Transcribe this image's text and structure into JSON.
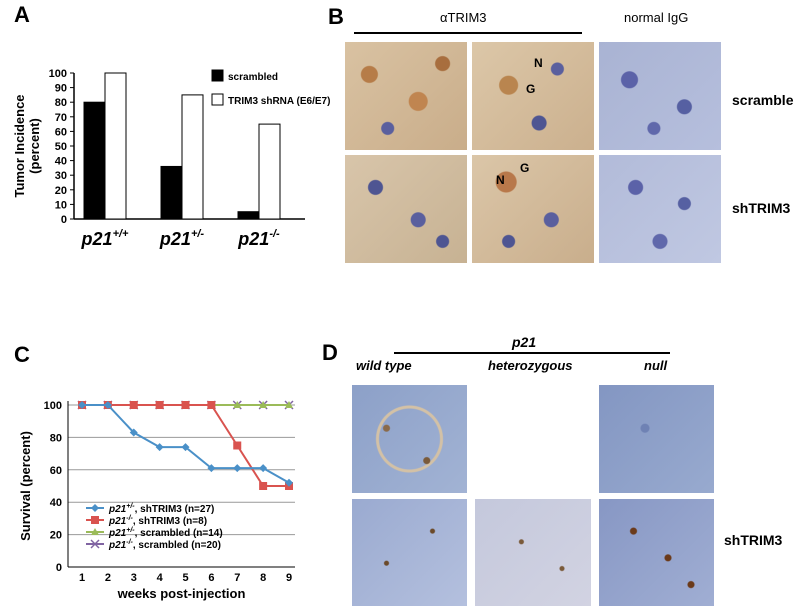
{
  "panels": {
    "a": "A",
    "b": "B",
    "c": "C",
    "d": "D"
  },
  "panel_b": {
    "header_antibody": "αTRIM3",
    "header_control": "normal IgG",
    "row_labels": [
      "scramble",
      "shTRIM3"
    ],
    "markers": {
      "N": "N",
      "G": "G"
    }
  },
  "panel_d": {
    "header": "p21",
    "columns": [
      "wild type",
      "heterozygous",
      "null"
    ],
    "row_label": "shTRIM3"
  },
  "chart_data": [
    {
      "type": "bar",
      "panel": "A",
      "ylabel": "Tumor Incidence (percent)",
      "ylim": [
        0,
        100
      ],
      "yticks": [
        0,
        10,
        20,
        30,
        40,
        50,
        60,
        70,
        80,
        90,
        100
      ],
      "categories": [
        {
          "base": "p21",
          "sup": "+/+"
        },
        {
          "base": "p21",
          "sup": "+/-"
        },
        {
          "base": "p21",
          "sup": "-/-"
        }
      ],
      "series": [
        {
          "name": "scrambled",
          "color": "#000000",
          "values": [
            80,
            36,
            5
          ]
        },
        {
          "name": "TRIM3 shRNA (E6/E7)",
          "color": "#ffffff",
          "values": [
            100,
            85,
            65
          ]
        }
      ],
      "legend": "top-right"
    },
    {
      "type": "line",
      "panel": "C",
      "xlabel": "weeks post-injection",
      "ylabel": "Survival (percent)",
      "x": [
        1,
        2,
        3,
        4,
        5,
        6,
        7,
        8,
        9
      ],
      "ylim": [
        0,
        100
      ],
      "yticks": [
        0,
        20,
        40,
        60,
        80,
        100
      ],
      "grid": true,
      "series": [
        {
          "label_base": "p21",
          "label_sup": "+/-",
          "label_rest": ", shTRIM3 (n=27)",
          "color": "#4a90c8",
          "marker": "diamond",
          "values": [
            100,
            100,
            83,
            74,
            74,
            61,
            61,
            61,
            52
          ]
        },
        {
          "label_base": "p21",
          "label_sup": "-/-",
          "label_rest": ", shTRIM3 (n=8)",
          "color": "#d9534f",
          "marker": "square",
          "values": [
            100,
            100,
            100,
            100,
            100,
            100,
            75,
            50,
            50
          ]
        },
        {
          "label_base": "p21",
          "label_sup": "+/-",
          "label_rest": ", scrambled (n=14)",
          "color": "#9bbb59",
          "marker": "triangle",
          "values": [
            100,
            100,
            100,
            100,
            100,
            100,
            100,
            100,
            100
          ]
        },
        {
          "label_base": "p21",
          "label_sup": "-/-",
          "label_rest": ", scrambled (n=20)",
          "color": "#8064a2",
          "marker": "x",
          "values": [
            100,
            100,
            100,
            100,
            100,
            100,
            100,
            100,
            100
          ]
        }
      ],
      "legend": "bottom-left"
    }
  ]
}
